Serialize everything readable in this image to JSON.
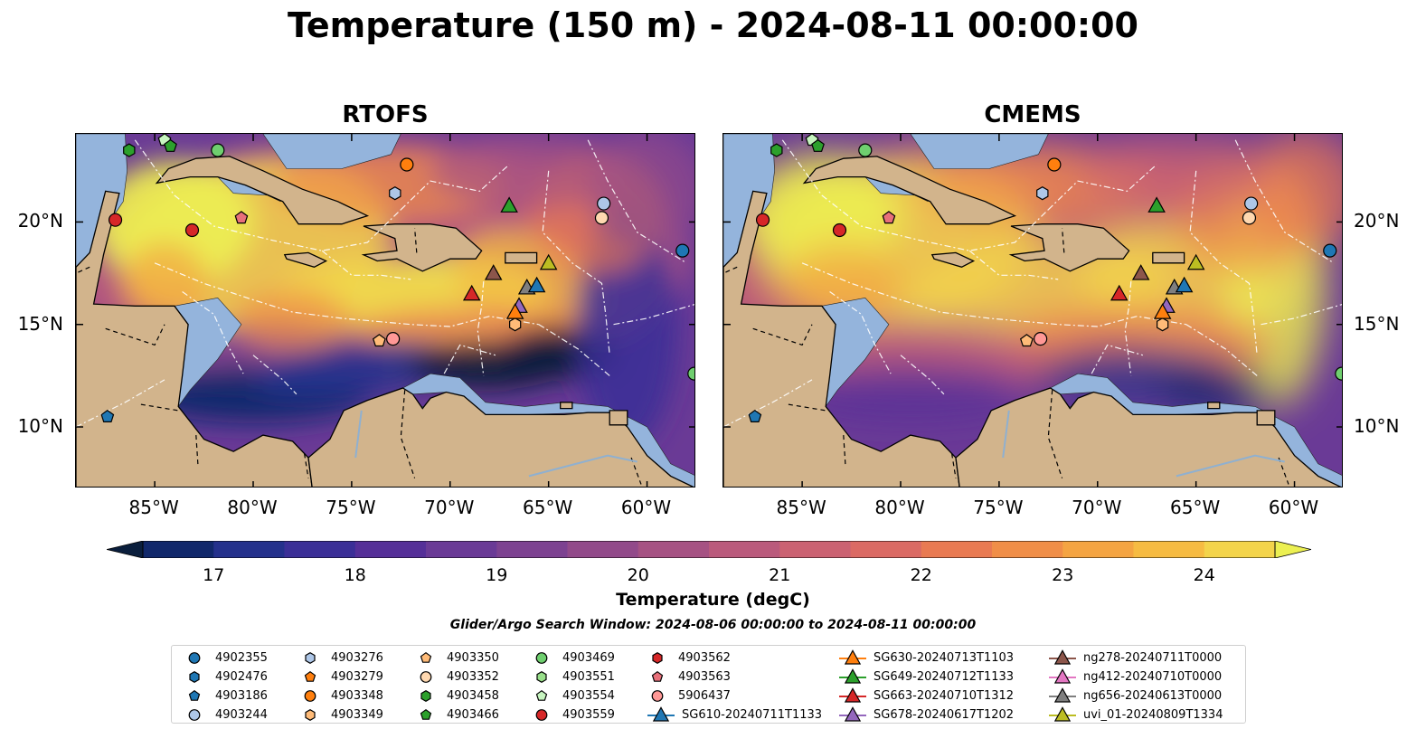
{
  "title": "Temperature (150 m) - 2024-08-11 00:00:00",
  "panels": [
    {
      "title": "RTOFS",
      "style": "rtofs"
    },
    {
      "title": "CMEMS",
      "style": "cmems"
    }
  ],
  "map": {
    "lon_range": [
      -89,
      -57.5
    ],
    "lat_range": [
      7,
      24.3
    ],
    "lon_ticks": [
      {
        "value": -85,
        "label": "85°W"
      },
      {
        "value": -80,
        "label": "80°W"
      },
      {
        "value": -75,
        "label": "75°W"
      },
      {
        "value": -70,
        "label": "70°W"
      },
      {
        "value": -65,
        "label": "65°W"
      },
      {
        "value": -60,
        "label": "60°W"
      }
    ],
    "lat_ticks": [
      {
        "value": 20,
        "label": "20°N"
      },
      {
        "value": 15,
        "label": "15°N"
      },
      {
        "value": 10,
        "label": "10°N"
      }
    ],
    "land_color": "#d2b48c",
    "shelf_color": "#94b4dc"
  },
  "colorbar": {
    "label": "Temperature (degC)",
    "min": 16.5,
    "max": 24.5,
    "ticks": [
      "17",
      "18",
      "19",
      "20",
      "21",
      "22",
      "23",
      "24"
    ],
    "colors": [
      "#0a1e3c",
      "#11286b",
      "#24318c",
      "#3b2f97",
      "#552f98",
      "#6a3a96",
      "#7d4291",
      "#924a8a",
      "#a65283",
      "#ba5a7c",
      "#cb6272",
      "#db6a64",
      "#e97a52",
      "#f08e48",
      "#f4a442",
      "#f6bb42",
      "#f3d44b",
      "#ecf052"
    ]
  },
  "search_window": "Glider/Argo Search Window: 2024-08-06 00:00:00 to 2024-08-11 00:00:00",
  "legend": [
    {
      "label": "4902355",
      "marker": "circle",
      "color": "#1f77b4",
      "line": false
    },
    {
      "label": "4902476",
      "marker": "hexagon",
      "color": "#1f77b4",
      "line": false
    },
    {
      "label": "4903186",
      "marker": "pentagon",
      "color": "#1f77b4",
      "line": false
    },
    {
      "label": "4903244",
      "marker": "circle",
      "color": "#aec7e8",
      "line": false
    },
    {
      "label": "4903276",
      "marker": "hexagon",
      "color": "#aec7e8",
      "line": false
    },
    {
      "label": "4903279",
      "marker": "pentagon",
      "color": "#ff7f0e",
      "line": false
    },
    {
      "label": "4903348",
      "marker": "circle",
      "color": "#ff7f0e",
      "line": false
    },
    {
      "label": "4903349",
      "marker": "hexagon",
      "color": "#ffbb78",
      "line": false
    },
    {
      "label": "4903350",
      "marker": "pentagon",
      "color": "#ffbb78",
      "line": false
    },
    {
      "label": "4903352",
      "marker": "circle",
      "color": "#ffd8b0",
      "line": false
    },
    {
      "label": "4903458",
      "marker": "hexagon",
      "color": "#2ca02c",
      "line": false
    },
    {
      "label": "4903466",
      "marker": "pentagon",
      "color": "#2ca02c",
      "line": false
    },
    {
      "label": "4903469",
      "marker": "circle",
      "color": "#6fcf6f",
      "line": false
    },
    {
      "label": "4903551",
      "marker": "hexagon",
      "color": "#98df8a",
      "line": false
    },
    {
      "label": "4903554",
      "marker": "pentagon",
      "color": "#c7f5c0",
      "line": false
    },
    {
      "label": "4903559",
      "marker": "circle",
      "color": "#d62728",
      "line": false
    },
    {
      "label": "4903562",
      "marker": "hexagon",
      "color": "#d62728",
      "line": false
    },
    {
      "label": "4903563",
      "marker": "pentagon",
      "color": "#e8707a",
      "line": false
    },
    {
      "label": "5906437",
      "marker": "circle",
      "color": "#ff9896",
      "line": false
    },
    {
      "label": "SG610-20240711T1133",
      "marker": "triangle",
      "color": "#1f77b4",
      "line": true
    },
    {
      "label": "SG630-20240713T1103",
      "marker": "triangle",
      "color": "#ff7f0e",
      "line": true
    },
    {
      "label": "SG649-20240712T1133",
      "marker": "triangle",
      "color": "#2ca02c",
      "line": true
    },
    {
      "label": "SG663-20240710T1312",
      "marker": "triangle",
      "color": "#d62728",
      "line": true
    },
    {
      "label": "SG678-20240617T1202",
      "marker": "triangle",
      "color": "#9467bd",
      "line": true
    },
    {
      "label": "ng278-20240711T0000",
      "marker": "triangle",
      "color": "#8c564b",
      "line": true
    },
    {
      "label": "ng412-20240710T0000",
      "marker": "triangle",
      "color": "#e377c2",
      "line": true
    },
    {
      "label": "ng656-20240613T0000",
      "marker": "triangle",
      "color": "#7f7f7f",
      "line": true
    },
    {
      "label": "uvi_01-20240809T1334",
      "marker": "triangle",
      "color": "#bcbd22",
      "line": true
    }
  ],
  "markers": [
    {
      "name": "4903554",
      "lon": -84.5,
      "lat": 24.0
    },
    {
      "name": "4903466",
      "lon": -84.2,
      "lat": 23.7
    },
    {
      "name": "4903458",
      "lon": -86.3,
      "lat": 23.5
    },
    {
      "name": "4903469",
      "lon": -81.8,
      "lat": 23.5
    },
    {
      "name": "4903348",
      "lon": -72.2,
      "lat": 22.8
    },
    {
      "name": "4903276",
      "lon": -72.8,
      "lat": 21.4
    },
    {
      "name": "4903244",
      "lon": -62.2,
      "lat": 20.9
    },
    {
      "name": "4903352",
      "lon": -62.3,
      "lat": 20.2
    },
    {
      "name": "4903559",
      "lon": -87.0,
      "lat": 20.1
    },
    {
      "name": "4903563",
      "lon": -80.6,
      "lat": 20.2
    },
    {
      "name": "4903559",
      "lon": -83.1,
      "lat": 19.6
    },
    {
      "name": "4902355",
      "lon": -58.2,
      "lat": 18.6
    },
    {
      "name": "4903349",
      "lon": -66.7,
      "lat": 15.0
    },
    {
      "name": "4903350",
      "lon": -73.6,
      "lat": 14.2
    },
    {
      "name": "5906437",
      "lon": -72.9,
      "lat": 14.3
    },
    {
      "name": "4903186",
      "lon": -87.4,
      "lat": 10.5
    },
    {
      "name": "4903469",
      "lon": -57.6,
      "lat": 12.6
    },
    {
      "name": "SG649-20240712T1133",
      "lon": -67.0,
      "lat": 20.8
    },
    {
      "name": "uvi_01-20240809T1334",
      "lon": -65.0,
      "lat": 18.0
    },
    {
      "name": "ng278-20240711T0000",
      "lon": -67.8,
      "lat": 17.5
    },
    {
      "name": "SG663-20240710T1312",
      "lon": -68.9,
      "lat": 16.5
    },
    {
      "name": "ng656-20240613T0000",
      "lon": -66.1,
      "lat": 16.8
    },
    {
      "name": "SG610-20240711T1133",
      "lon": -65.6,
      "lat": 16.9
    },
    {
      "name": "SG678-20240617T1202",
      "lon": -66.5,
      "lat": 15.9
    },
    {
      "name": "SG630-20240713T1103",
      "lon": -66.7,
      "lat": 15.6
    }
  ]
}
